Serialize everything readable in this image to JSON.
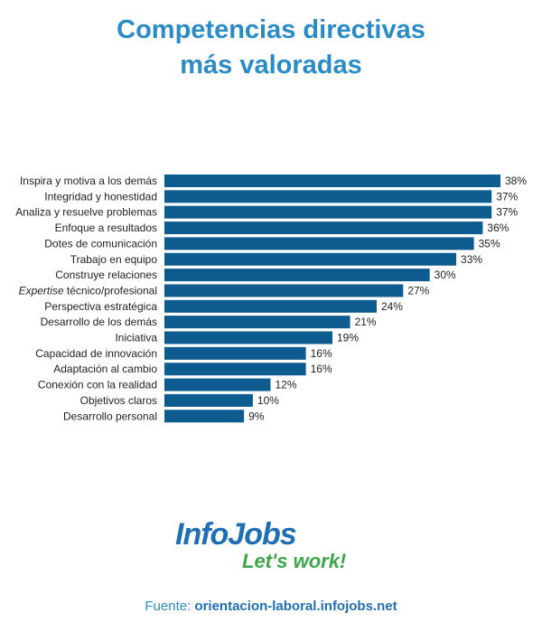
{
  "header": {
    "title_line1": "Competencias directivas",
    "title_line2": "más valoradas"
  },
  "chart_data": {
    "type": "bar",
    "orientation": "horizontal",
    "categories": [
      "Inspira y motiva a los demás",
      "Integridad y honestidad",
      "Analiza y resuelve problemas",
      "Enfoque a resultados",
      "Dotes de comunicación",
      "Trabajo en equipo",
      "Construye relaciones",
      "Expertise técnico/profesional",
      "Perspectiva estratégica",
      "Desarrollo de los demás",
      "Iniciativa",
      "Capacidad de innovación",
      "Adaptación al cambio",
      "Conexión con la realidad",
      "Objetivos claros",
      "Desarrollo personal"
    ],
    "values": [
      38,
      37,
      37,
      36,
      35,
      33,
      30,
      27,
      24,
      21,
      19,
      16,
      16,
      12,
      10,
      9
    ],
    "value_labels": [
      "38%",
      "37%",
      "37%",
      "36%",
      "35%",
      "33%",
      "30%",
      "27%",
      "24%",
      "21%",
      "19%",
      "16%",
      "16%",
      "12%",
      "10%",
      "9%"
    ],
    "title": "Competencias directivas más valoradas",
    "xlabel": "",
    "ylabel": "",
    "xlim": [
      0,
      38
    ],
    "grid": false,
    "legend": "none",
    "colors": {
      "bar": "#0e5b8f",
      "label_text": "#222222",
      "value_text": "#222222"
    }
  },
  "logo": {
    "brand": "InfoJobs",
    "tagline": "Let's work!",
    "colors": {
      "brand": "#1f6fb5",
      "tagline": "#3ea64a"
    }
  },
  "footer": {
    "label": "Fuente:",
    "url": "orientacion-laboral.infojobs.net"
  }
}
